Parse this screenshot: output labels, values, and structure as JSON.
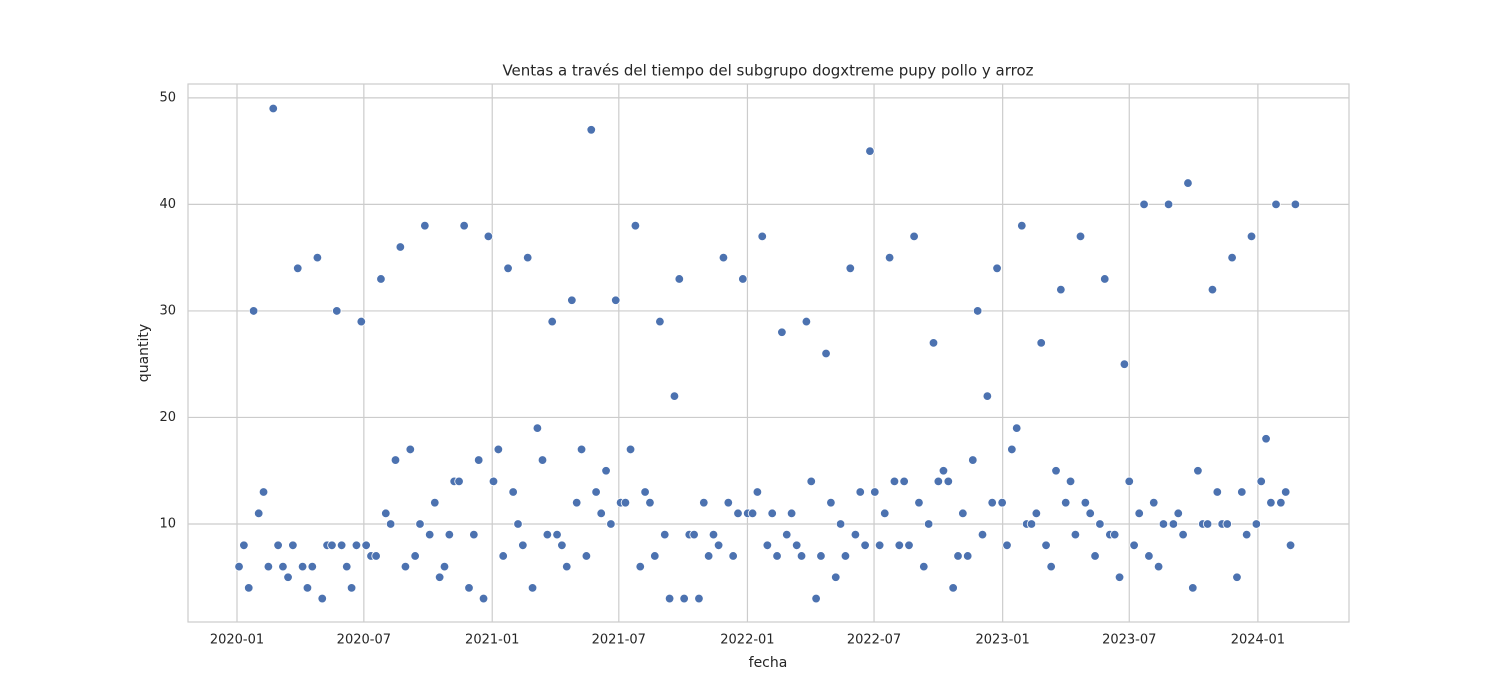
{
  "chart_data": {
    "type": "scatter",
    "title": "Ventas a través del tiempo del subgrupo dogxtreme pupy pollo y arroz",
    "x_label": "fecha",
    "y_label": "quantity",
    "color": "#4c72b0",
    "grid": true,
    "xlim": [
      2019.808,
      2024.357
    ],
    "ylim": [
      0.8,
      51.3
    ],
    "xticks": [
      {
        "value": 2020.0,
        "label": "2020-01"
      },
      {
        "value": 2020.497,
        "label": "2020-07"
      },
      {
        "value": 2021.0,
        "label": "2021-01"
      },
      {
        "value": 2021.496,
        "label": "2021-07"
      },
      {
        "value": 2022.0,
        "label": "2022-01"
      },
      {
        "value": 2022.496,
        "label": "2022-07"
      },
      {
        "value": 2023.0,
        "label": "2023-01"
      },
      {
        "value": 2023.496,
        "label": "2023-07"
      },
      {
        "value": 2024.0,
        "label": "2024-01"
      }
    ],
    "yticks": [
      10,
      20,
      30,
      40,
      50
    ],
    "x": [
      2020.008,
      2020.027,
      2020.046,
      2020.065,
      2020.085,
      2020.104,
      2020.123,
      2020.142,
      2020.161,
      2020.18,
      2020.2,
      2020.219,
      2020.238,
      2020.257,
      2020.276,
      2020.295,
      2020.315,
      2020.334,
      2020.353,
      2020.372,
      2020.391,
      2020.41,
      2020.43,
      2020.449,
      2020.468,
      2020.487,
      2020.506,
      2020.525,
      2020.545,
      2020.564,
      2020.583,
      2020.602,
      2020.621,
      2020.64,
      2020.66,
      2020.679,
      2020.698,
      2020.717,
      2020.736,
      2020.755,
      2020.775,
      2020.794,
      2020.813,
      2020.832,
      2020.851,
      2020.87,
      2020.89,
      2020.909,
      2020.928,
      2020.947,
      2020.966,
      2020.985,
      2021.005,
      2021.024,
      2021.043,
      2021.062,
      2021.082,
      2021.101,
      2021.12,
      2021.139,
      2021.158,
      2021.177,
      2021.197,
      2021.216,
      2021.235,
      2021.254,
      2021.273,
      2021.292,
      2021.312,
      2021.331,
      2021.35,
      2021.369,
      2021.388,
      2021.407,
      2021.427,
      2021.446,
      2021.465,
      2021.484,
      2021.503,
      2021.522,
      2021.542,
      2021.561,
      2021.58,
      2021.599,
      2021.618,
      2021.637,
      2021.657,
      2021.676,
      2021.695,
      2021.714,
      2021.733,
      2021.752,
      2021.772,
      2021.791,
      2021.81,
      2021.829,
      2021.848,
      2021.867,
      2021.887,
      2021.906,
      2021.925,
      2021.944,
      2021.963,
      2021.982,
      2022.001,
      2022.02,
      2022.039,
      2022.058,
      2022.078,
      2022.097,
      2022.116,
      2022.135,
      2022.154,
      2022.173,
      2022.193,
      2022.212,
      2022.231,
      2022.25,
      2022.269,
      2022.288,
      2022.308,
      2022.327,
      2022.346,
      2022.365,
      2022.384,
      2022.403,
      2022.423,
      2022.442,
      2022.461,
      2022.48,
      2022.499,
      2022.518,
      2022.538,
      2022.557,
      2022.576,
      2022.595,
      2022.614,
      2022.633,
      2022.653,
      2022.672,
      2022.691,
      2022.71,
      2022.729,
      2022.748,
      2022.768,
      2022.787,
      2022.806,
      2022.825,
      2022.844,
      2022.863,
      2022.883,
      2022.902,
      2022.921,
      2022.94,
      2022.959,
      2022.978,
      2022.998,
      2023.017,
      2023.036,
      2023.055,
      2023.075,
      2023.094,
      2023.113,
      2023.132,
      2023.151,
      2023.17,
      2023.19,
      2023.209,
      2023.228,
      2023.247,
      2023.266,
      2023.285,
      2023.305,
      2023.324,
      2023.343,
      2023.362,
      2023.381,
      2023.4,
      2023.42,
      2023.439,
      2023.458,
      2023.477,
      2023.496,
      2023.515,
      2023.535,
      2023.554,
      2023.573,
      2023.592,
      2023.611,
      2023.63,
      2023.65,
      2023.669,
      2023.688,
      2023.707,
      2023.726,
      2023.745,
      2023.765,
      2023.784,
      2023.803,
      2023.822,
      2023.841,
      2023.86,
      2023.88,
      2023.899,
      2023.918,
      2023.937,
      2023.956,
      2023.975,
      2023.994,
      2024.013,
      2024.032,
      2024.051,
      2024.071,
      2024.09,
      2024.109,
      2024.128,
      2024.147
    ],
    "values": [
      6,
      8,
      4,
      30,
      11,
      13,
      6,
      49,
      8,
      6,
      5,
      8,
      34,
      6,
      4,
      6,
      35,
      3,
      8,
      8,
      30,
      8,
      6,
      4,
      8,
      29,
      8,
      7,
      7,
      33,
      11,
      10,
      16,
      36,
      6,
      17,
      7,
      10,
      38,
      9,
      12,
      5,
      6,
      9,
      14,
      14,
      38,
      4,
      9,
      16,
      3,
      37,
      14,
      17,
      7,
      34,
      13,
      10,
      8,
      35,
      4,
      19,
      16,
      9,
      29,
      9,
      8,
      6,
      31,
      12,
      17,
      7,
      47,
      13,
      11,
      15,
      10,
      31,
      12,
      12,
      17,
      38,
      6,
      13,
      12,
      7,
      29,
      9,
      3,
      22,
      33,
      3,
      9,
      9,
      3,
      12,
      7,
      9,
      8,
      35,
      12,
      7,
      11,
      33,
      11,
      11,
      13,
      37,
      8,
      11,
      7,
      28,
      9,
      11,
      8,
      7,
      29,
      14,
      3,
      7,
      26,
      12,
      5,
      10,
      7,
      34,
      9,
      13,
      8,
      45,
      13,
      8,
      11,
      35,
      14,
      8,
      14,
      8,
      37,
      12,
      6,
      10,
      27,
      14,
      15,
      14,
      4,
      7,
      11,
      7,
      16,
      30,
      9,
      22,
      12,
      34,
      12,
      8,
      17,
      19,
      38,
      10,
      10,
      11,
      27,
      8,
      6,
      15,
      32,
      12,
      14,
      9,
      37,
      12,
      11,
      7,
      10,
      33,
      9,
      9,
      5,
      25,
      14,
      8,
      11,
      40,
      7,
      12,
      6,
      10,
      40,
      10,
      11,
      9,
      42,
      4,
      15,
      10,
      10,
      32,
      13,
      10,
      10,
      35,
      5,
      13,
      9,
      37,
      10,
      14,
      18,
      12,
      40,
      12,
      13,
      8,
      40
    ]
  }
}
